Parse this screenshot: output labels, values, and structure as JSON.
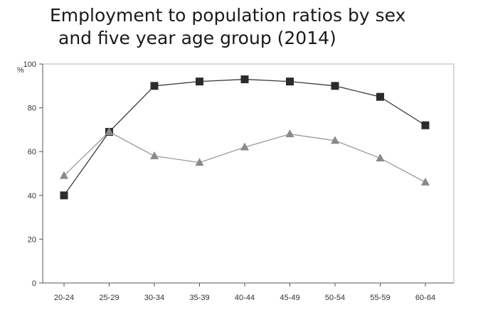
{
  "chart_data": {
    "type": "line",
    "title_line1": "Employment to population ratios by sex",
    "title_line2": "and five year age group (2014)",
    "xlabel": "",
    "ylabel": "",
    "y_unit": "%",
    "ylim": [
      0,
      100
    ],
    "y_ticks": [
      0,
      20,
      40,
      60,
      80,
      100
    ],
    "categories": [
      "20-24",
      "25-29",
      "30-34",
      "35-39",
      "40-44",
      "45-49",
      "50-54",
      "55-59",
      "60-64"
    ],
    "series": [
      {
        "marker": "square",
        "color": "#2b2b2b",
        "values": [
          40,
          69,
          90,
          92,
          93,
          92,
          90,
          85,
          72
        ]
      },
      {
        "marker": "triangle",
        "color": "#8a8a8a",
        "values": [
          49,
          69,
          58,
          55,
          62,
          68,
          65,
          57,
          46
        ]
      }
    ],
    "grid": false,
    "plot_border": true
  }
}
